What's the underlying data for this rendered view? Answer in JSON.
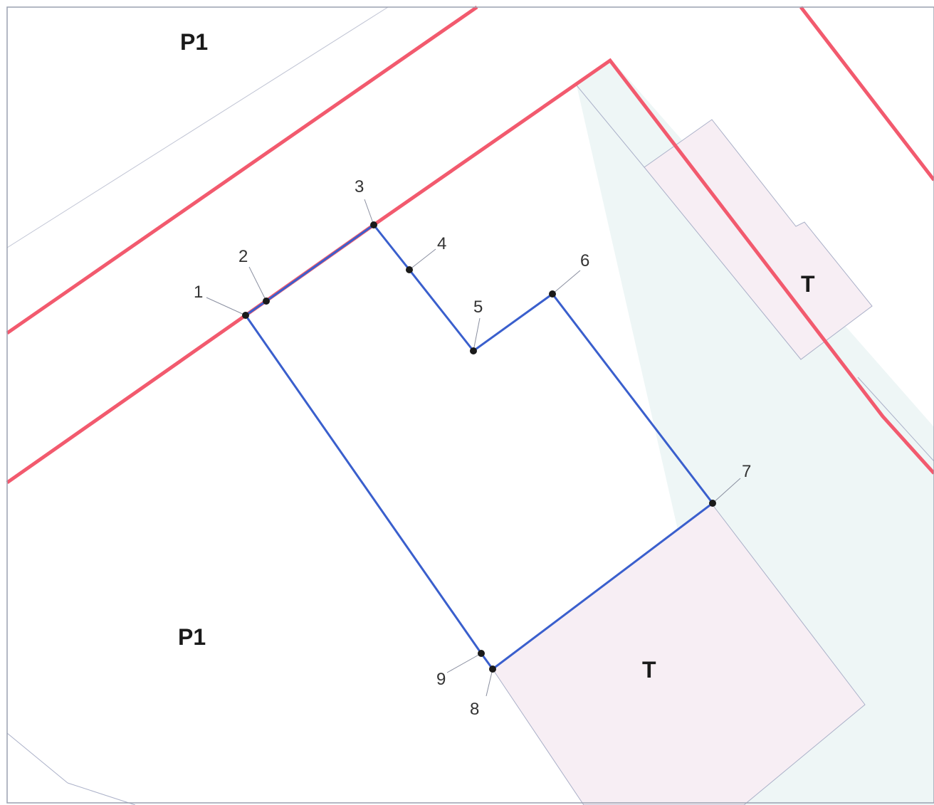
{
  "map": {
    "zones": [
      {
        "id": "p1-top",
        "label": "P1"
      },
      {
        "id": "p1-bottom",
        "label": "P1"
      },
      {
        "id": "t-right",
        "label": "T"
      },
      {
        "id": "t-bottom",
        "label": "T"
      }
    ],
    "points": [
      {
        "n": "1"
      },
      {
        "n": "2"
      },
      {
        "n": "3"
      },
      {
        "n": "4"
      },
      {
        "n": "5"
      },
      {
        "n": "6"
      },
      {
        "n": "7"
      },
      {
        "n": "8"
      },
      {
        "n": "9"
      }
    ],
    "colors": {
      "zone_boundary": "#f25a6e",
      "parcel_boundary": "#3a5fcd",
      "t_zone_fill": "#f7eef4",
      "light_fill": "#eef6f6",
      "thin_line": "#aab0c8",
      "vertex": "#1a1a1a",
      "frame": "#9aa0b0"
    }
  }
}
